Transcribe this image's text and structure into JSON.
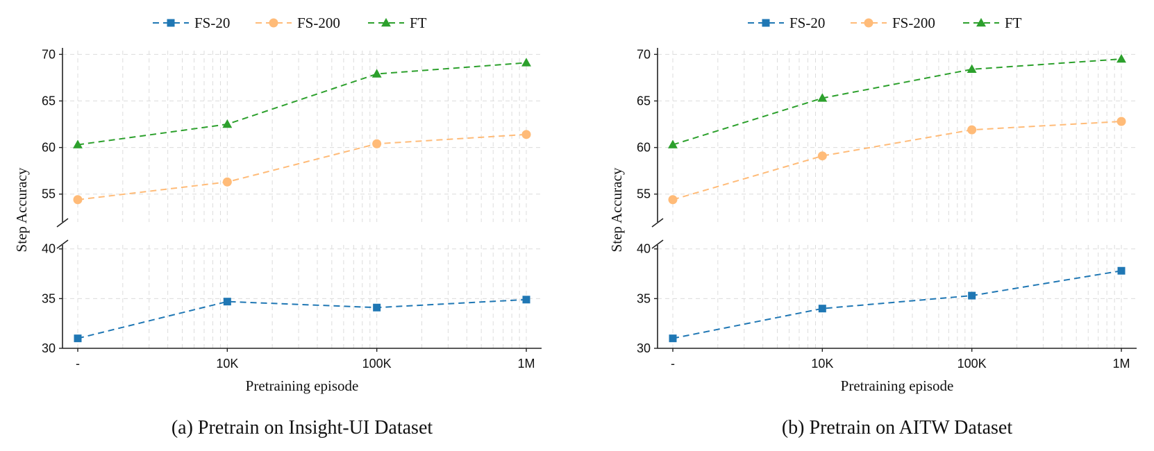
{
  "chart_data": [
    {
      "type": "line",
      "caption": "(a) Pretrain on Insight-UI Dataset",
      "xlabel": "Pretraining episode",
      "ylabel": "Step Accuracy",
      "x_scale": "log",
      "x_ticks": [
        {
          "label": "-",
          "value": 1000
        },
        {
          "label": "10K",
          "value": 10000
        },
        {
          "label": "100K",
          "value": 100000
        },
        {
          "label": "1M",
          "value": 1000000
        }
      ],
      "y_axis": "broken",
      "ylim_upper": [
        52,
        70.4
      ],
      "ylim_lower": [
        30,
        40.4
      ],
      "y_ticks_upper": [
        "55",
        "60",
        "65",
        "70"
      ],
      "y_ticks_lower": [
        "30",
        "35",
        "40"
      ],
      "grid": true,
      "legend_position": "top",
      "series": [
        {
          "name": "FS-20",
          "color": "#1f77b4",
          "marker": "square",
          "x": [
            1000,
            10000,
            100000,
            1000000
          ],
          "values": [
            31.0,
            34.7,
            34.1,
            34.9
          ]
        },
        {
          "name": "FS-200",
          "color": "#ffbb78",
          "marker": "circle",
          "x": [
            1000,
            10000,
            100000,
            1000000
          ],
          "values": [
            54.4,
            56.3,
            60.4,
            61.4
          ]
        },
        {
          "name": "FT",
          "color": "#2ca02c",
          "marker": "triangle",
          "x": [
            1000,
            10000,
            100000,
            1000000
          ],
          "values": [
            60.3,
            62.5,
            67.9,
            69.1
          ]
        }
      ]
    },
    {
      "type": "line",
      "caption": "(b) Pretrain on AITW Dataset",
      "xlabel": "Pretraining episode",
      "ylabel": "Step Accuracy",
      "x_scale": "log",
      "x_ticks": [
        {
          "label": "-",
          "value": 1000
        },
        {
          "label": "10K",
          "value": 10000
        },
        {
          "label": "100K",
          "value": 100000
        },
        {
          "label": "1M",
          "value": 1000000
        }
      ],
      "y_axis": "broken",
      "ylim_upper": [
        52,
        70.4
      ],
      "ylim_lower": [
        30,
        40.4
      ],
      "y_ticks_upper": [
        "55",
        "60",
        "65",
        "70"
      ],
      "y_ticks_lower": [
        "30",
        "35",
        "40"
      ],
      "grid": true,
      "legend_position": "top",
      "series": [
        {
          "name": "FS-20",
          "color": "#1f77b4",
          "marker": "square",
          "x": [
            1000,
            10000,
            100000,
            1000000
          ],
          "values": [
            31.0,
            34.0,
            35.3,
            37.8
          ]
        },
        {
          "name": "FS-200",
          "color": "#ffbb78",
          "marker": "circle",
          "x": [
            1000,
            10000,
            100000,
            1000000
          ],
          "values": [
            54.4,
            59.1,
            61.9,
            62.8
          ]
        },
        {
          "name": "FT",
          "color": "#2ca02c",
          "marker": "triangle",
          "x": [
            1000,
            10000,
            100000,
            1000000
          ],
          "values": [
            60.3,
            65.3,
            68.4,
            69.5
          ]
        }
      ]
    }
  ]
}
